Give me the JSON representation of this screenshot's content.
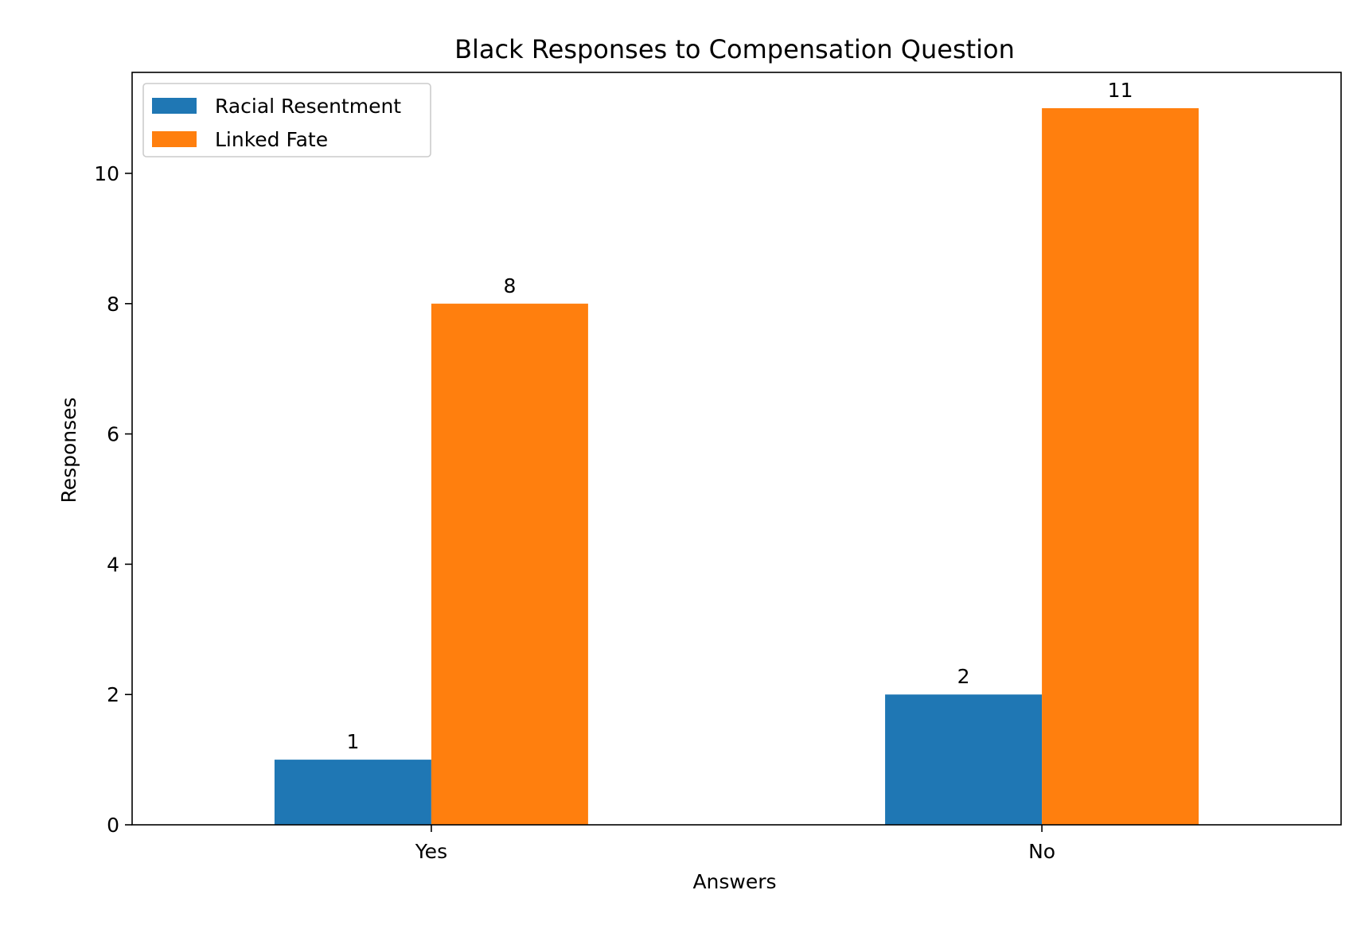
{
  "chart_data": {
    "type": "bar",
    "title": "Black Responses to Compensation Question",
    "xlabel": "Answers",
    "ylabel": "Responses",
    "categories": [
      "Yes",
      "No"
    ],
    "series": [
      {
        "name": "Racial Resentment",
        "values": [
          1,
          2
        ],
        "color": "#1f77b4"
      },
      {
        "name": "Linked Fate",
        "values": [
          8,
          11
        ],
        "color": "#ff7f0e"
      }
    ],
    "ylim": [
      0,
      11.55
    ],
    "yticks": [
      0,
      2,
      4,
      6,
      8,
      10
    ],
    "grid": false,
    "legend_position": "top-left",
    "data_labels": true
  }
}
